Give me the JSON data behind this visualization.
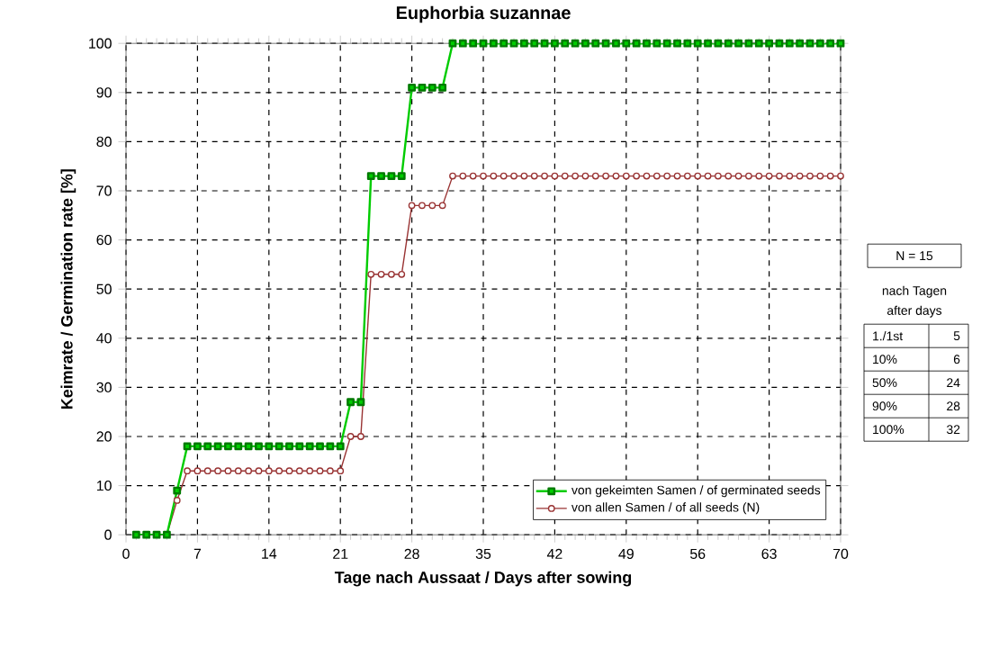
{
  "chart_data": {
    "type": "line",
    "title": "Euphorbia suzannae",
    "xlabel": "Tage nach Aussaat / Days after sowing",
    "ylabel": "Keimrate / Germination rate [%]",
    "x": [
      1,
      2,
      3,
      4,
      5,
      6,
      7,
      8,
      9,
      10,
      11,
      12,
      13,
      14,
      15,
      16,
      17,
      18,
      19,
      20,
      21,
      22,
      23,
      24,
      25,
      26,
      27,
      28,
      29,
      30,
      31,
      32,
      33,
      34,
      35,
      36,
      37,
      38,
      39,
      40,
      41,
      42,
      43,
      44,
      45,
      46,
      47,
      48,
      49,
      50,
      51,
      52,
      53,
      54,
      55,
      56,
      57,
      58,
      59,
      60,
      61,
      62,
      63,
      64,
      65,
      66,
      67,
      68,
      69,
      70
    ],
    "series": [
      {
        "name": "von gekeimten Samen / of germinated seeds",
        "color": "#00cc00",
        "marker": "square",
        "values": [
          0,
          0,
          0,
          0,
          9,
          18,
          18,
          18,
          18,
          18,
          18,
          18,
          18,
          18,
          18,
          18,
          18,
          18,
          18,
          18,
          18,
          27,
          27,
          73,
          73,
          73,
          73,
          91,
          91,
          91,
          91,
          100,
          100,
          100,
          100,
          100,
          100,
          100,
          100,
          100,
          100,
          100,
          100,
          100,
          100,
          100,
          100,
          100,
          100,
          100,
          100,
          100,
          100,
          100,
          100,
          100,
          100,
          100,
          100,
          100,
          100,
          100,
          100,
          100,
          100,
          100,
          100,
          100,
          100,
          100
        ]
      },
      {
        "name": "von allen Samen / of all seeds (N)",
        "color": "#993333",
        "marker": "circle",
        "values": [
          null,
          null,
          0,
          0,
          7,
          13,
          13,
          13,
          13,
          13,
          13,
          13,
          13,
          13,
          13,
          13,
          13,
          13,
          13,
          13,
          13,
          20,
          20,
          53,
          53,
          53,
          53,
          67,
          67,
          67,
          67,
          73,
          73,
          73,
          73,
          73,
          73,
          73,
          73,
          73,
          73,
          73,
          73,
          73,
          73,
          73,
          73,
          73,
          73,
          73,
          73,
          73,
          73,
          73,
          73,
          73,
          73,
          73,
          73,
          73,
          73,
          73,
          73,
          73,
          73,
          73,
          73,
          73,
          73,
          73
        ]
      }
    ],
    "xlim": [
      0,
      70
    ],
    "xticks": [
      0,
      7,
      14,
      21,
      28,
      35,
      42,
      49,
      56,
      63,
      70
    ],
    "ylim": [
      0,
      100
    ],
    "yticks": [
      0,
      10,
      20,
      30,
      40,
      50,
      60,
      70,
      80,
      90,
      100
    ],
    "grid": true,
    "legend": "bottom right",
    "line_style": "solid",
    "annotations": [
      "N = 15",
      "nach Tagen",
      "after days",
      "1./1st",
      "5",
      "10%",
      "6",
      "50%",
      "24",
      "90%",
      "28",
      "100%",
      "32"
    ]
  }
}
